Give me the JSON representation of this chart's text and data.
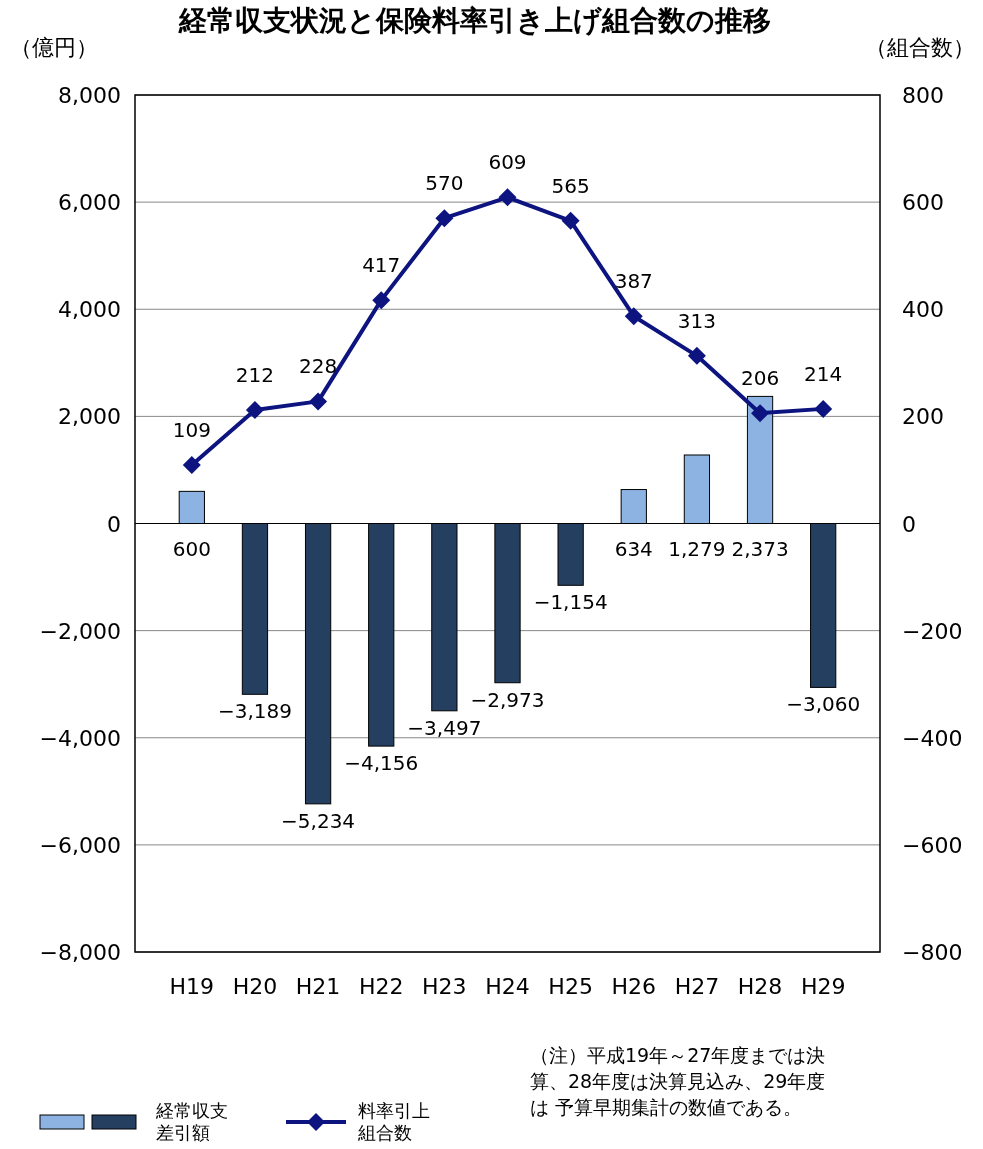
{
  "chart_data": {
    "type": "bar",
    "title": "経常収支状況と保険料率引き上げ組合数の推移",
    "ylabel": "（億円）",
    "y2label": "（組合数）",
    "categories": [
      "H19",
      "H20",
      "H21",
      "H22",
      "H23",
      "H24",
      "H25",
      "H26",
      "H27",
      "H28",
      "H29"
    ],
    "series": [
      {
        "name": "経常収支差引額",
        "colors": [
          "#8db3e2",
          "#243f60",
          "#243f60",
          "#243f60",
          "#243f60",
          "#243f60",
          "#243f60",
          "#8db3e2",
          "#8db3e2",
          "#8db3e2",
          "#243f60"
        ],
        "values": [
          600,
          -3189,
          -5234,
          -4156,
          -3497,
          -2973,
          -1154,
          634,
          1279,
          2373,
          -3060
        ],
        "value_labels": [
          "600",
          "−3,189",
          "−5,234",
          "−4,156",
          "−3,497",
          "−2,973",
          "−1,154",
          "634",
          "1,279",
          "2,373",
          "−3,060"
        ]
      },
      {
        "type": "line",
        "name": "料率引上組合数",
        "color": "#0d1480",
        "axis": "y2",
        "marker": "diamond",
        "values": [
          109,
          212,
          228,
          417,
          570,
          609,
          565,
          387,
          313,
          206,
          214
        ],
        "value_labels": [
          "109",
          "212",
          "228",
          "417",
          "570",
          "609",
          "565",
          "387",
          "313",
          "206",
          "214"
        ]
      }
    ],
    "ylim": [
      -8000,
      8000
    ],
    "yticks": [
      {
        "value": -8000,
        "label": "−8,000"
      },
      {
        "value": -6000,
        "label": "−6,000"
      },
      {
        "value": -4000,
        "label": "−4,000"
      },
      {
        "value": -2000,
        "label": "−2,000"
      },
      0,
      {
        "value": 2000,
        "label": "2,000"
      },
      {
        "value": 4000,
        "label": "4,000"
      },
      {
        "value": 6000,
        "label": "6,000"
      },
      {
        "value": 8000,
        "label": "8,000"
      }
    ],
    "y2lim": [
      -800,
      800
    ],
    "y2ticks": [
      {
        "value": -800,
        "label": "−800"
      },
      {
        "value": -600,
        "label": "−600"
      },
      {
        "value": -400,
        "label": "−400"
      },
      {
        "value": -200,
        "label": "−200"
      },
      0,
      200,
      400,
      600,
      800
    ],
    "grid": "y",
    "legend": "bottom left",
    "annotations": [
      "（注）平成19年～27年度までは決算、28年度は決算見込み、29年度は 予算早期集計の数値である。"
    ]
  }
}
